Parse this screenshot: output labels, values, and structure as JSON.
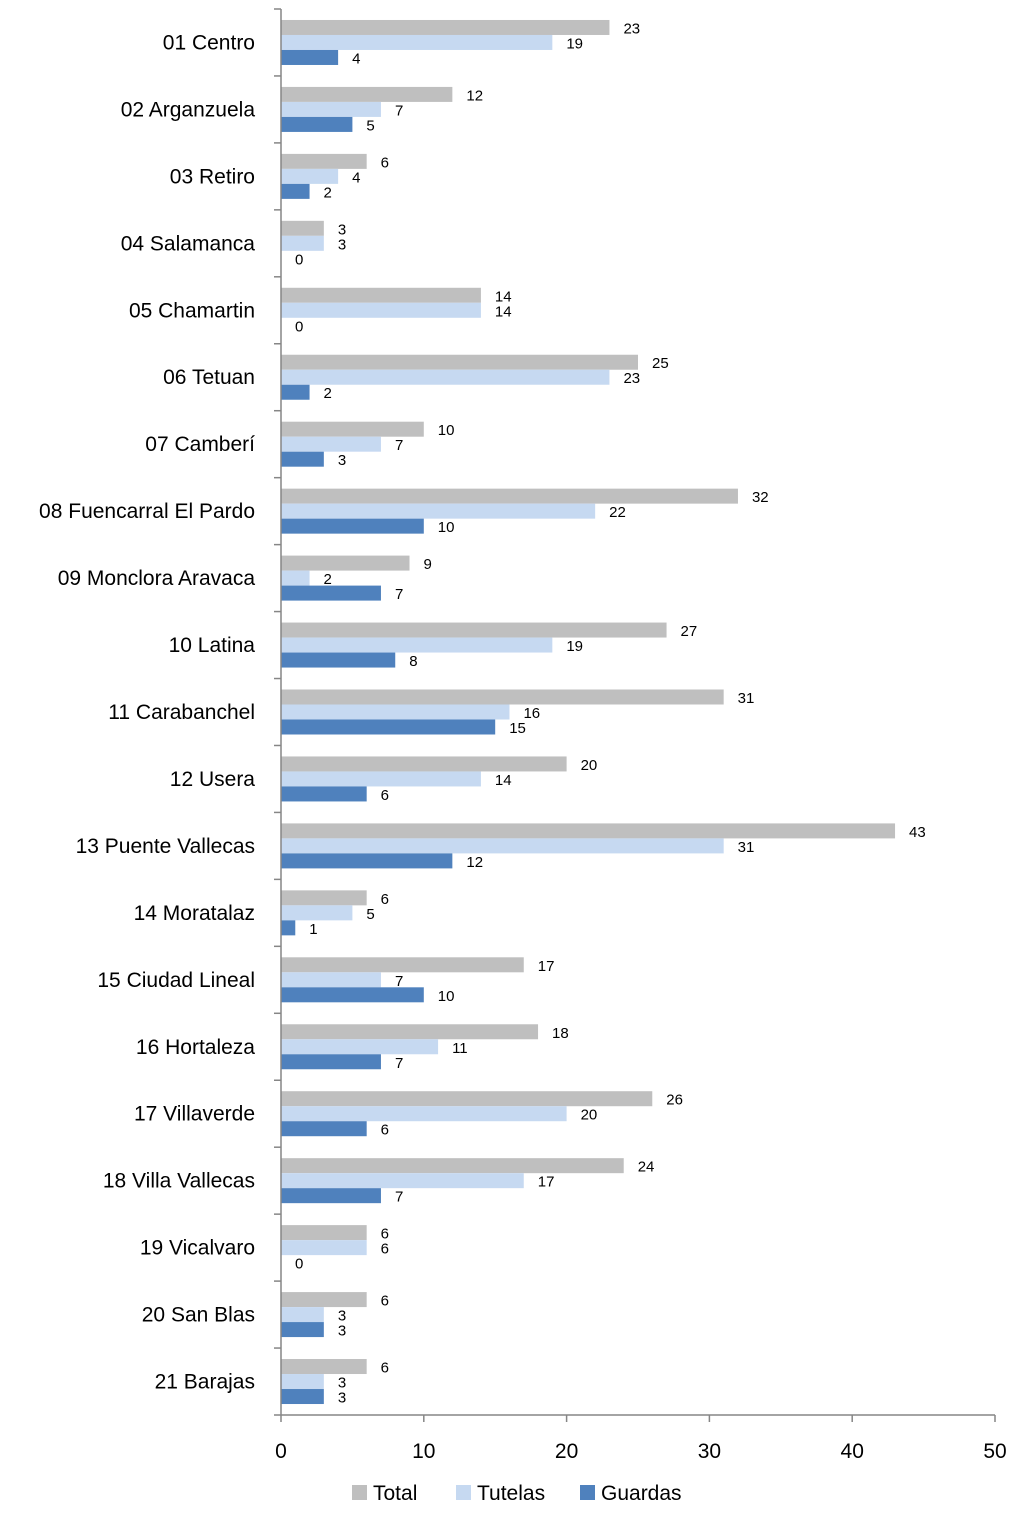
{
  "chart_data": {
    "type": "bar",
    "orientation": "horizontal",
    "categories": [
      "01 Centro",
      "02 Arganzuela",
      "03 Retiro",
      "04 Salamanca",
      "05 Chamartin",
      "06 Tetuan",
      "07 Camberí",
      "08 Fuencarral El Pardo",
      "09 Monclora Aravaca",
      "10 Latina",
      "11 Carabanchel",
      "12 Usera",
      "13 Puente Vallecas",
      "14 Moratalaz",
      "15 Ciudad Lineal",
      "16 Hortaleza",
      "17 Villaverde",
      "18 Villa Vallecas",
      "19 Vicalvaro",
      "20 San Blas",
      "21 Barajas"
    ],
    "series": [
      {
        "name": "Total",
        "color": "#bfbfbf",
        "values": [
          23,
          12,
          6,
          3,
          14,
          25,
          10,
          32,
          9,
          27,
          31,
          20,
          43,
          6,
          17,
          18,
          26,
          24,
          6,
          6,
          6
        ]
      },
      {
        "name": "Tutelas",
        "color": "#c6d9f1",
        "values": [
          19,
          7,
          4,
          3,
          14,
          23,
          7,
          22,
          2,
          19,
          16,
          14,
          31,
          5,
          7,
          11,
          20,
          17,
          6,
          3,
          3
        ]
      },
      {
        "name": "Guardas",
        "color": "#4f81bd",
        "values": [
          4,
          5,
          2,
          0,
          0,
          2,
          3,
          10,
          7,
          8,
          15,
          6,
          12,
          1,
          10,
          7,
          6,
          7,
          0,
          3,
          3
        ]
      }
    ],
    "xlim": [
      0,
      50
    ],
    "xticks": [
      0,
      10,
      20,
      30,
      40,
      50
    ],
    "title": "",
    "xlabel": "",
    "ylabel": "",
    "grid": false,
    "legend_position": "bottom"
  }
}
